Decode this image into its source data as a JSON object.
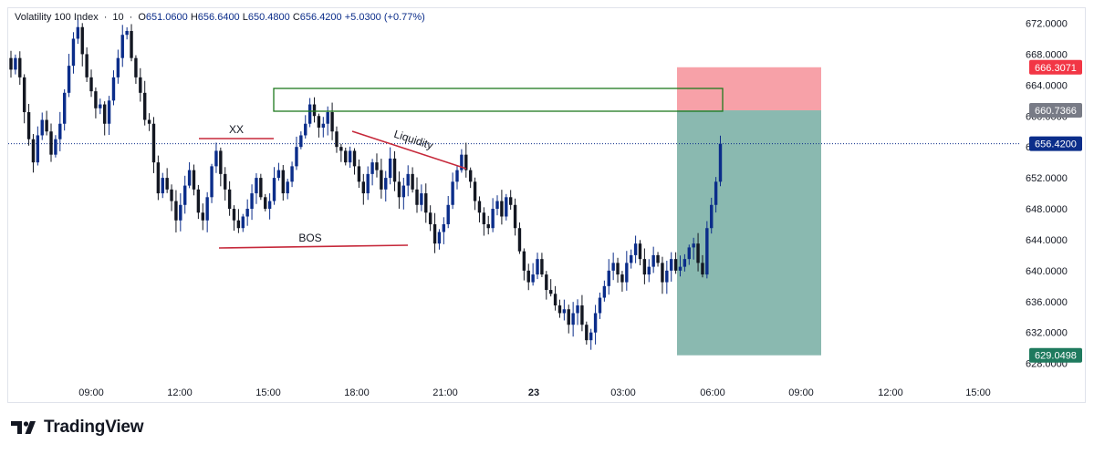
{
  "header": {
    "symbol": "Volatility 100 Index",
    "interval": "10",
    "open_label": "O",
    "open": "651.0600",
    "high_label": "H",
    "high": "656.6400",
    "low_label": "L",
    "low": "650.4800",
    "close_label": "C",
    "close": "656.4200",
    "change": "+5.0300 (+0.77%)"
  },
  "brand": "TradingView",
  "colors": {
    "bull": "#0b2d8a",
    "bear": "#131722",
    "annotation_red": "#c6283a",
    "box_green": "#1e7a1e",
    "stop_zone": "#f7a1a8",
    "target_zone": "#8ab9b0",
    "stop_badge": "#f23645",
    "entry_badge": "#787b86",
    "price_badge": "#0b2d8a",
    "target_badge": "#1e7a5e"
  },
  "chart_data": {
    "type": "candlestick",
    "y_range": [
      627.0,
      673.5
    ],
    "y_ticks": [
      "672.0000",
      "668.0000",
      "664.0000",
      "660.0000",
      "656.0000",
      "652.0000",
      "648.0000",
      "644.0000",
      "640.0000",
      "636.0000",
      "632.0000",
      "628.0000"
    ],
    "x_ticks": [
      "09:00",
      "12:00",
      "15:00",
      "18:00",
      "21:00",
      "23",
      "03:00",
      "06:00",
      "09:00",
      "12:00",
      "15:00"
    ],
    "price_labels": [
      {
        "text": "666.3071",
        "value": 666.3071,
        "role": "stop"
      },
      {
        "text": "660.7366",
        "value": 660.7366,
        "role": "entry"
      },
      {
        "text": "656.4200",
        "value": 656.42,
        "role": "last"
      },
      {
        "text": "629.0498",
        "value": 629.0498,
        "role": "target"
      }
    ],
    "annotations": [
      {
        "text": "XX"
      },
      {
        "text": "Liquidity"
      },
      {
        "text": "BOS"
      }
    ],
    "closes": [
      666,
      667.5,
      665,
      660.5,
      657,
      654,
      657.5,
      659.5,
      658,
      655,
      657,
      659,
      663,
      666.5,
      670,
      671.5,
      668,
      665,
      663.2,
      661,
      661.5,
      659,
      662,
      665,
      667.5,
      670.5,
      671,
      667.5,
      665,
      663,
      659.5,
      659,
      654,
      650,
      652,
      650.5,
      649,
      646.5,
      648.5,
      651,
      653,
      650.5,
      647.5,
      646.5,
      649.5,
      653.5,
      655.5,
      652.5,
      650.5,
      648,
      646.5,
      645.5,
      647,
      648,
      650,
      652,
      649.5,
      648,
      649,
      652,
      653,
      650,
      651.5,
      653.5,
      656,
      657.5,
      659,
      661.5,
      660,
      658.5,
      659,
      660.5,
      658,
      656,
      655.5,
      654,
      655.5,
      653.5,
      651.5,
      650,
      652.5,
      654,
      653,
      650.5,
      652,
      654.5,
      651.5,
      649.5,
      651,
      652.5,
      650.5,
      648.5,
      650,
      647.5,
      646,
      643.5,
      645,
      646,
      648.5,
      651.5,
      653,
      655,
      653,
      651.5,
      649,
      647.5,
      646,
      645.5,
      648,
      649,
      647,
      649.5,
      648.5,
      645.5,
      642.5,
      640,
      638.5,
      639.5,
      641.5,
      639.5,
      637.5,
      637,
      635.5,
      634.5,
      635,
      633,
      634.5,
      635.5,
      633,
      631,
      632,
      634.5,
      636.5,
      638,
      640,
      641,
      639.5,
      638.5,
      641,
      642,
      643.5,
      641.5,
      639.5,
      640.5,
      642,
      641,
      638.5,
      640,
      641.5,
      640,
      640.5,
      641.5,
      643,
      643.5,
      641,
      639.5,
      645.5,
      648.5,
      651.5,
      656.42
    ]
  }
}
